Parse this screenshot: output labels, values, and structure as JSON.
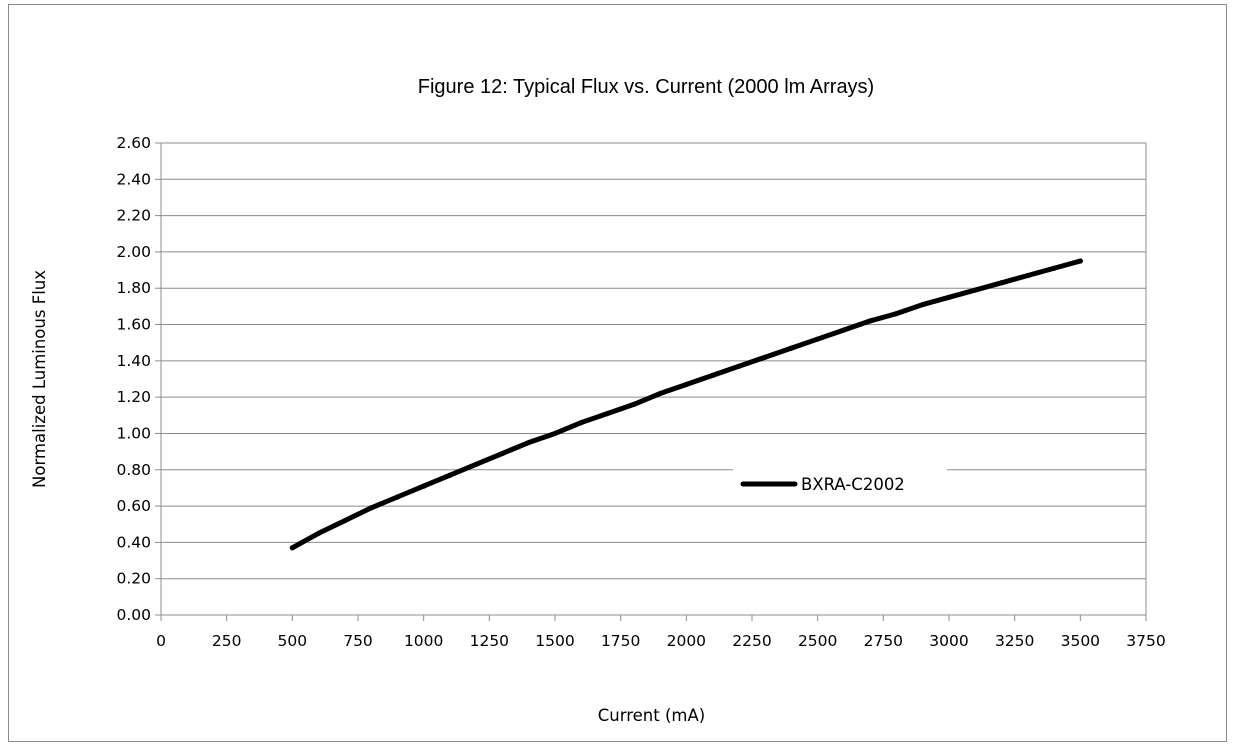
{
  "chart_data": {
    "type": "line",
    "title": "Figure 12:  Typical Flux vs. Current (2000 lm Arrays)",
    "xlabel": "Current (mA)",
    "ylabel": "Normalized Luminous Flux",
    "xlim": [
      0,
      3750
    ],
    "ylim": [
      0,
      2.6
    ],
    "x_ticks": [
      "0",
      "250",
      "500",
      "750",
      "1000",
      "1250",
      "1500",
      "1750",
      "2000",
      "2250",
      "2500",
      "2750",
      "3000",
      "3250",
      "3500",
      "3750"
    ],
    "y_ticks": [
      "0.00",
      "0.20",
      "0.40",
      "0.60",
      "0.80",
      "1.00",
      "1.20",
      "1.40",
      "1.60",
      "1.80",
      "2.00",
      "2.20",
      "2.40",
      "2.60"
    ],
    "grid": "horizontal",
    "legend_position": "right",
    "series": [
      {
        "name": "BXRA-C2002",
        "color": "#000000",
        "x": [
          500,
          600,
          700,
          800,
          900,
          1000,
          1100,
          1200,
          1300,
          1400,
          1500,
          1600,
          1700,
          1800,
          1900,
          2000,
          2100,
          2200,
          2300,
          2400,
          2500,
          2600,
          2700,
          2800,
          2900,
          3000,
          3100,
          3200,
          3300,
          3400,
          3500
        ],
        "y": [
          0.37,
          0.45,
          0.52,
          0.59,
          0.65,
          0.71,
          0.77,
          0.83,
          0.89,
          0.95,
          1.0,
          1.06,
          1.11,
          1.16,
          1.22,
          1.27,
          1.32,
          1.37,
          1.42,
          1.47,
          1.52,
          1.57,
          1.62,
          1.66,
          1.71,
          1.75,
          1.79,
          1.83,
          1.87,
          1.91,
          1.95
        ]
      }
    ]
  }
}
